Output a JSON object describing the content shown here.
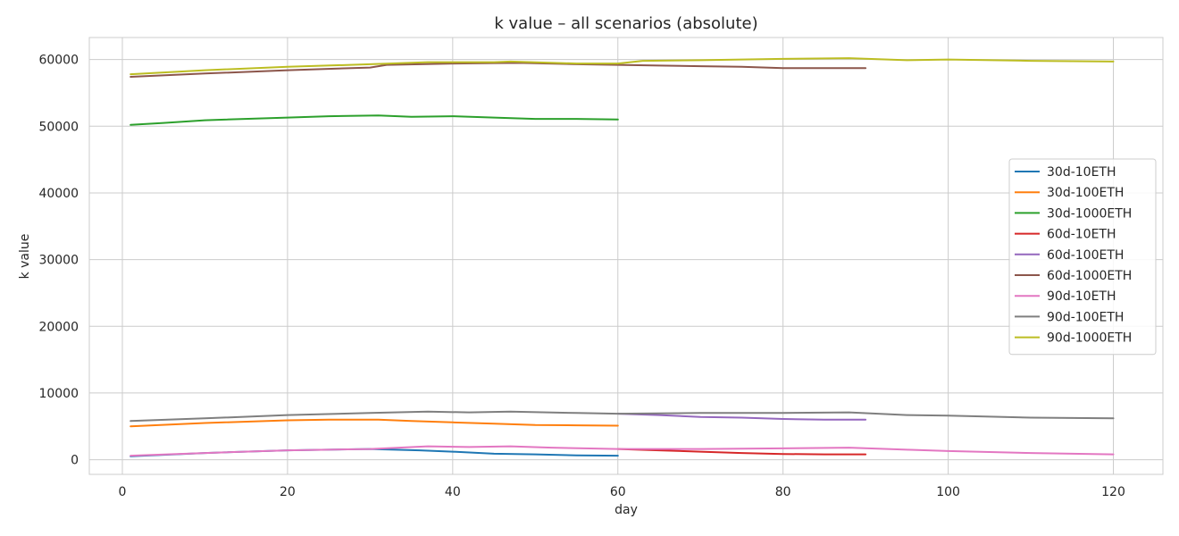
{
  "chart_data": {
    "type": "line",
    "title": "k value – all scenarios (absolute)",
    "xlabel": "day",
    "ylabel": "k value",
    "xlim": [
      -4,
      126
    ],
    "ylim": [
      -2200,
      63300
    ],
    "xticks": [
      0,
      20,
      40,
      60,
      80,
      100,
      120
    ],
    "yticks": [
      0,
      10000,
      20000,
      30000,
      40000,
      50000,
      60000
    ],
    "grid": true,
    "legend_position": "center-right",
    "series": [
      {
        "name": "30d-10ETH",
        "color": "#1f77b4",
        "points": [
          [
            1,
            500
          ],
          [
            10,
            1000
          ],
          [
            20,
            1400
          ],
          [
            30,
            1600
          ],
          [
            36,
            1400
          ],
          [
            40,
            1200
          ],
          [
            45,
            900
          ],
          [
            50,
            800
          ],
          [
            55,
            650
          ],
          [
            60,
            600
          ]
        ]
      },
      {
        "name": "30d-100ETH",
        "color": "#ff7f0e",
        "points": [
          [
            1,
            5000
          ],
          [
            10,
            5500
          ],
          [
            20,
            5900
          ],
          [
            25,
            6000
          ],
          [
            31,
            6000
          ],
          [
            35,
            5800
          ],
          [
            40,
            5600
          ],
          [
            45,
            5400
          ],
          [
            50,
            5200
          ],
          [
            55,
            5150
          ],
          [
            60,
            5100
          ]
        ]
      },
      {
        "name": "30d-1000ETH",
        "color": "#2ca02c",
        "points": [
          [
            1,
            50200
          ],
          [
            5,
            50500
          ],
          [
            10,
            50900
          ],
          [
            20,
            51300
          ],
          [
            25,
            51500
          ],
          [
            31,
            51600
          ],
          [
            35,
            51400
          ],
          [
            40,
            51500
          ],
          [
            45,
            51300
          ],
          [
            50,
            51100
          ],
          [
            55,
            51100
          ],
          [
            60,
            51000
          ]
        ]
      },
      {
        "name": "60d-10ETH",
        "color": "#d62728",
        "points": [
          [
            60,
            1600
          ],
          [
            65,
            1400
          ],
          [
            70,
            1200
          ],
          [
            75,
            1000
          ],
          [
            80,
            850
          ],
          [
            85,
            800
          ],
          [
            90,
            800
          ]
        ]
      },
      {
        "name": "60d-100ETH",
        "color": "#9467bd",
        "points": [
          [
            60,
            6900
          ],
          [
            65,
            6700
          ],
          [
            70,
            6400
          ],
          [
            75,
            6300
          ],
          [
            80,
            6100
          ],
          [
            85,
            6000
          ],
          [
            90,
            6000
          ]
        ]
      },
      {
        "name": "60d-1000ETH",
        "color": "#8c564b",
        "points": [
          [
            1,
            57400
          ],
          [
            10,
            57900
          ],
          [
            20,
            58400
          ],
          [
            30,
            58800
          ],
          [
            32,
            59200
          ],
          [
            40,
            59400
          ],
          [
            48,
            59500
          ],
          [
            55,
            59300
          ],
          [
            60,
            59200
          ],
          [
            65,
            59100
          ],
          [
            70,
            59000
          ],
          [
            75,
            58900
          ],
          [
            80,
            58700
          ],
          [
            85,
            58700
          ],
          [
            90,
            58700
          ]
        ]
      },
      {
        "name": "90d-10ETH",
        "color": "#e377c2",
        "points": [
          [
            1,
            600
          ],
          [
            10,
            1000
          ],
          [
            20,
            1400
          ],
          [
            30,
            1600
          ],
          [
            37,
            2000
          ],
          [
            42,
            1900
          ],
          [
            47,
            2000
          ],
          [
            52,
            1800
          ],
          [
            60,
            1600
          ],
          [
            70,
            1600
          ],
          [
            80,
            1700
          ],
          [
            88,
            1800
          ],
          [
            95,
            1500
          ],
          [
            100,
            1300
          ],
          [
            110,
            1000
          ],
          [
            120,
            800
          ]
        ]
      },
      {
        "name": "90d-100ETH",
        "color": "#7f7f7f",
        "points": [
          [
            1,
            5800
          ],
          [
            10,
            6200
          ],
          [
            20,
            6700
          ],
          [
            30,
            7000
          ],
          [
            37,
            7200
          ],
          [
            42,
            7100
          ],
          [
            47,
            7200
          ],
          [
            55,
            7000
          ],
          [
            60,
            6900
          ],
          [
            70,
            7000
          ],
          [
            80,
            7000
          ],
          [
            88,
            7100
          ],
          [
            95,
            6700
          ],
          [
            100,
            6600
          ],
          [
            110,
            6300
          ],
          [
            120,
            6200
          ]
        ]
      },
      {
        "name": "90d-1000ETH",
        "color": "#bcbd22",
        "points": [
          [
            1,
            57800
          ],
          [
            10,
            58400
          ],
          [
            20,
            58900
          ],
          [
            30,
            59300
          ],
          [
            37,
            59600
          ],
          [
            45,
            59600
          ],
          [
            47,
            59700
          ],
          [
            55,
            59400
          ],
          [
            60,
            59400
          ],
          [
            63,
            59800
          ],
          [
            70,
            59900
          ],
          [
            80,
            60100
          ],
          [
            88,
            60200
          ],
          [
            95,
            59900
          ],
          [
            100,
            60000
          ],
          [
            110,
            59800
          ],
          [
            120,
            59700
          ]
        ]
      }
    ]
  }
}
